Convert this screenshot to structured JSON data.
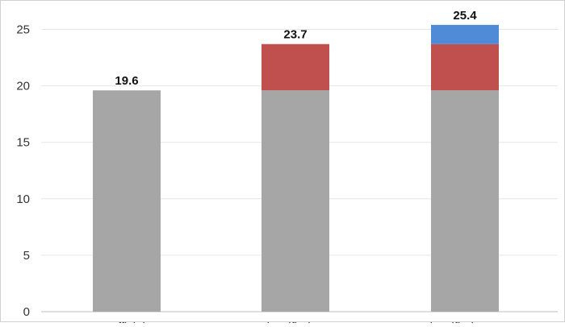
{
  "chart_data": {
    "type": "bar",
    "stacked": true,
    "categories": [
      "Official",
      "Reclassified GLFP",
      "Reclassified GLFP-N"
    ],
    "series": [
      {
        "values": [
          19.6,
          19.6,
          19.6
        ],
        "color": "#a6a6a6"
      },
      {
        "values": [
          0,
          4.1,
          4.1
        ],
        "color": "#c0504d"
      },
      {
        "values": [
          0,
          0,
          1.7
        ],
        "color": "#4f8bd6"
      }
    ],
    "totals": [
      "19.6",
      "23.7",
      "25.4"
    ],
    "ylim": [
      0,
      27
    ],
    "yticks": [
      0,
      5,
      10,
      15,
      20,
      25
    ],
    "grid": true
  }
}
